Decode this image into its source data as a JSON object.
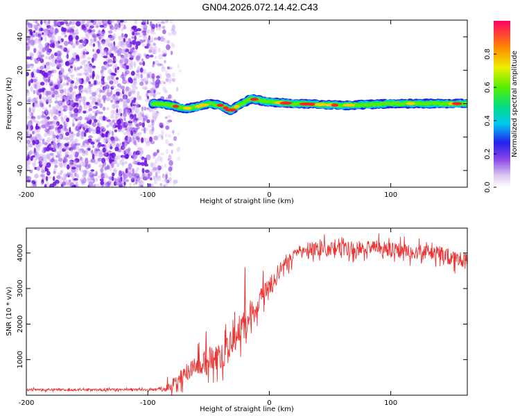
{
  "title": "GN04.2026.072.14.42.C43",
  "chart_data": [
    {
      "type": "heatmap",
      "xlabel": "Height of straight line (km)",
      "ylabel": "Frequency (Hz)",
      "xlim": [
        -200,
        163
      ],
      "ylim": [
        -50,
        50
      ],
      "xticks": [
        -200,
        -100,
        0,
        100
      ],
      "yticks": [
        -40,
        -20,
        0,
        20,
        40
      ],
      "colorbar": {
        "label": "Normalized spectral amplitude",
        "range": [
          0,
          1
        ],
        "ticks": [
          "0.0",
          "0.2",
          "0.4",
          "0.6",
          "0.8"
        ]
      },
      "noise_region_km": [
        -200,
        -80
      ],
      "ridge_km_hz": [
        [
          -96,
          0
        ],
        [
          -90,
          0
        ],
        [
          -80,
          -1
        ],
        [
          -70,
          -3
        ],
        [
          -60,
          -2
        ],
        [
          -50,
          0
        ],
        [
          -40,
          -1
        ],
        [
          -32,
          -4
        ],
        [
          -25,
          -1
        ],
        [
          -15,
          3
        ],
        [
          -8,
          2
        ],
        [
          0,
          1
        ],
        [
          20,
          0
        ],
        [
          60,
          -1
        ],
        [
          100,
          0
        ],
        [
          140,
          0
        ],
        [
          163,
          0
        ]
      ]
    },
    {
      "type": "line",
      "xlabel": "Height of straight line (km)",
      "ylabel": "SNR (10 * v/v)",
      "xlim": [
        -200,
        163
      ],
      "ylim": [
        0,
        4700
      ],
      "xticks": [
        -200,
        -100,
        0,
        100
      ],
      "yticks": [
        1000,
        2000,
        3000,
        4000
      ],
      "color": "#ee3333",
      "series": [
        {
          "name": "SNR",
          "x": [
            -200,
            -180,
            -160,
            -140,
            -120,
            -100,
            -90,
            -85,
            -80,
            -75,
            -70,
            -65,
            -60,
            -55,
            -50,
            -45,
            -40,
            -35,
            -30,
            -25,
            -20,
            -15,
            -10,
            -5,
            0,
            5,
            10,
            15,
            20,
            25,
            30,
            40,
            50,
            60,
            70,
            80,
            90,
            100,
            110,
            120,
            130,
            140,
            150,
            163
          ],
          "y": [
            150,
            160,
            150,
            150,
            160,
            150,
            180,
            220,
            300,
            420,
            580,
            750,
            850,
            900,
            1000,
            1050,
            1100,
            1250,
            1500,
            1800,
            2000,
            2250,
            2450,
            2750,
            3000,
            3250,
            3500,
            3700,
            3950,
            4050,
            4100,
            4150,
            4100,
            4150,
            4100,
            4200,
            4150,
            4100,
            4050,
            4050,
            4000,
            4000,
            3850,
            3800
          ]
        }
      ],
      "spikes": [
        [
          -52,
          1800
        ],
        [
          -20,
          3600
        ],
        [
          -5,
          3500
        ]
      ]
    }
  ]
}
